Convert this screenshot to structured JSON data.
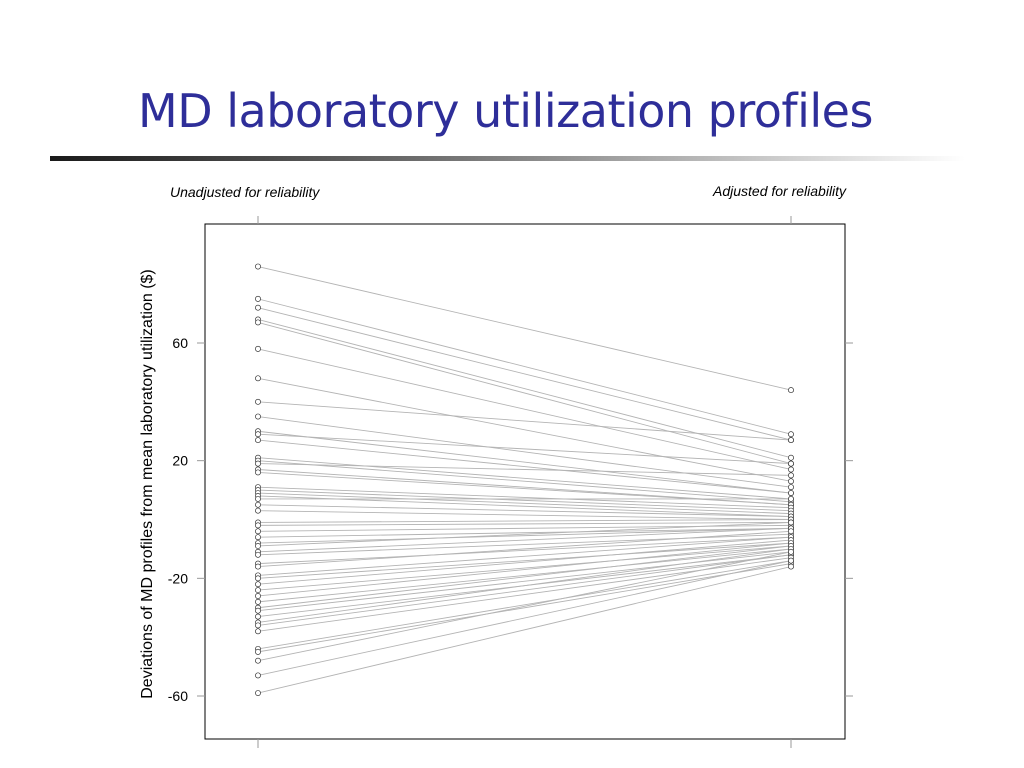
{
  "slide": {
    "title": "MD laboratory utilization profiles",
    "title_color": "#2e2e99"
  },
  "chart_data": {
    "type": "line",
    "title": "MD laboratory utilization profiles",
    "left_label": "Unadjusted for reliability",
    "right_label": "Adjusted for reliability",
    "ylabel": "Deviations of MD profiles from mean laboratory utilization ($)",
    "xlabel": "",
    "yticks": [
      60,
      20,
      -20,
      -60
    ],
    "ylim": [
      -75,
      100
    ],
    "grid": false,
    "line_color": "#b4b4b4",
    "marker_color": "#333333",
    "pairs": [
      [
        86,
        44
      ],
      [
        75,
        29
      ],
      [
        72,
        27
      ],
      [
        68,
        21
      ],
      [
        67,
        19
      ],
      [
        58,
        17
      ],
      [
        48,
        13
      ],
      [
        40,
        27
      ],
      [
        35,
        11
      ],
      [
        30,
        9
      ],
      [
        29,
        19
      ],
      [
        27,
        9
      ],
      [
        21,
        7
      ],
      [
        20,
        6
      ],
      [
        19,
        15
      ],
      [
        17,
        5
      ],
      [
        16,
        5
      ],
      [
        11,
        4
      ],
      [
        10,
        3
      ],
      [
        9,
        2
      ],
      [
        8,
        1
      ],
      [
        7,
        7
      ],
      [
        5,
        1
      ],
      [
        3,
        0
      ],
      [
        -1,
        0
      ],
      [
        -2,
        -1
      ],
      [
        -4,
        -2
      ],
      [
        -6,
        -3
      ],
      [
        -8,
        -3
      ],
      [
        -9,
        -1
      ],
      [
        -11,
        -3
      ],
      [
        -12,
        -5
      ],
      [
        -15,
        -6
      ],
      [
        -16,
        -4
      ],
      [
        -19,
        -6
      ],
      [
        -20,
        -8
      ],
      [
        -22,
        -7
      ],
      [
        -24,
        -9
      ],
      [
        -26,
        -8
      ],
      [
        -28,
        -10
      ],
      [
        -30,
        -9
      ],
      [
        -31,
        -11
      ],
      [
        -33,
        -12
      ],
      [
        -35,
        -10
      ],
      [
        -36,
        -12
      ],
      [
        -38,
        -13
      ],
      [
        -44,
        -14
      ],
      [
        -45,
        -15
      ],
      [
        -48,
        -11
      ],
      [
        -53,
        -14
      ],
      [
        -59,
        -16
      ]
    ]
  }
}
